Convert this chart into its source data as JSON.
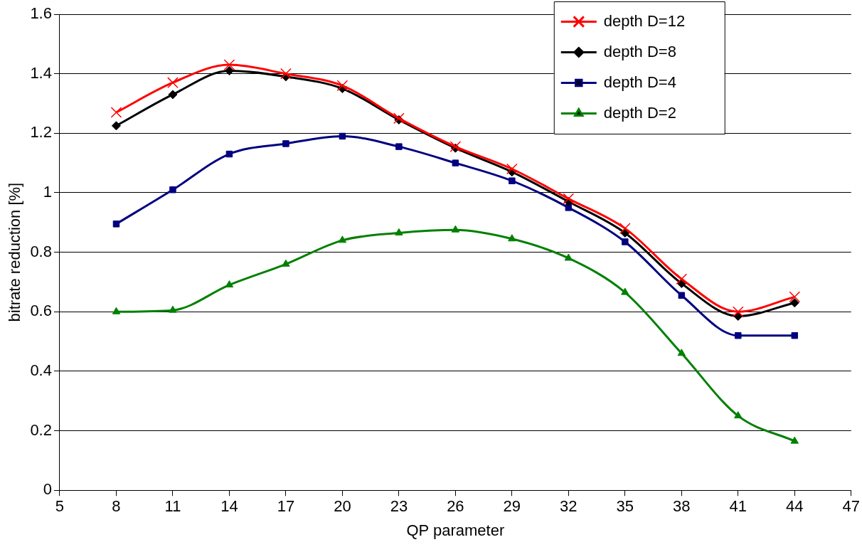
{
  "chart_data": {
    "type": "line",
    "xlabel": "QP parameter",
    "ylabel": "bitrate reduction [%]",
    "x": [
      8,
      11,
      14,
      17,
      20,
      23,
      26,
      29,
      32,
      35,
      38,
      41,
      44
    ],
    "xlim": [
      5,
      47
    ],
    "xticks": [
      5,
      8,
      11,
      14,
      17,
      20,
      23,
      26,
      29,
      32,
      35,
      38,
      41,
      44,
      47
    ],
    "ylim": [
      0,
      1.6
    ],
    "yticks": [
      0,
      0.2,
      0.4,
      0.6,
      0.8,
      1,
      1.2,
      1.4,
      1.6
    ],
    "grid": "y",
    "legend": "top right",
    "line_style": "solid",
    "series": [
      {
        "name": "depth D=12",
        "color": "#ff0000",
        "marker": "cross",
        "values": [
          1.27,
          1.37,
          1.43,
          1.4,
          1.36,
          1.25,
          1.155,
          1.08,
          0.98,
          0.88,
          0.71,
          0.6,
          0.65
        ]
      },
      {
        "name": "depth D=8",
        "color": "#000000",
        "marker": "diamond",
        "values": [
          1.225,
          1.33,
          1.41,
          1.39,
          1.35,
          1.245,
          1.15,
          1.07,
          0.97,
          0.865,
          0.695,
          0.585,
          0.63
        ]
      },
      {
        "name": "depth D=4",
        "color": "#000080",
        "marker": "square",
        "values": [
          0.895,
          1.01,
          1.13,
          1.165,
          1.19,
          1.155,
          1.1,
          1.04,
          0.95,
          0.835,
          0.655,
          0.52,
          0.52
        ]
      },
      {
        "name": "depth D=2",
        "color": "#008000",
        "marker": "triangle",
        "values": [
          0.6,
          0.605,
          0.69,
          0.76,
          0.84,
          0.865,
          0.875,
          0.845,
          0.78,
          0.665,
          0.46,
          0.25,
          0.165
        ]
      }
    ]
  }
}
